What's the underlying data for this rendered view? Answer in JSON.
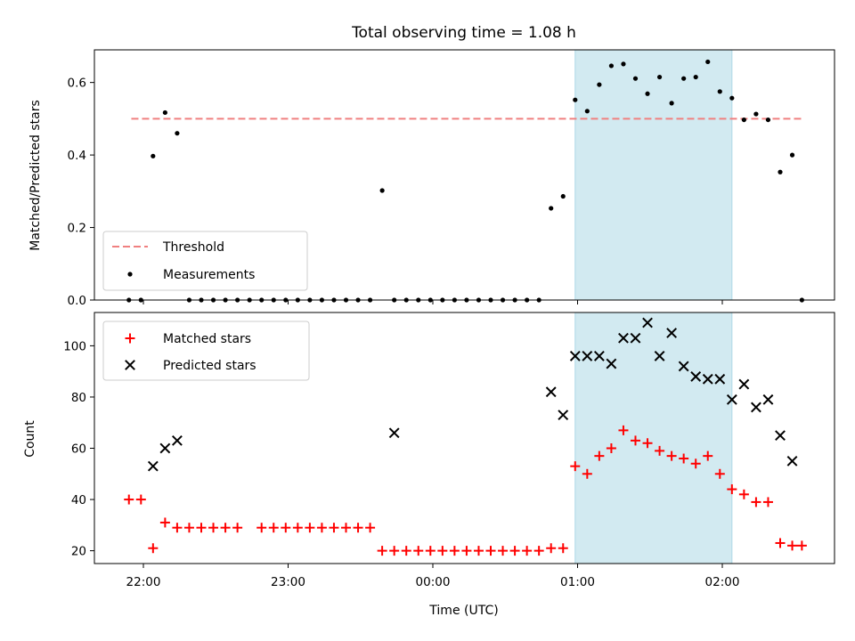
{
  "title": "Total observing time = 1.08 h",
  "xlabel": "Time (UTC)",
  "colors": {
    "threshold": "#f08080",
    "measurements": "#000000",
    "matched": "#ff0000",
    "predicted": "#000000",
    "highlight": "#add8e6"
  },
  "chart_data": [
    {
      "type": "scatter",
      "ylabel": "Matched/Predicted stars",
      "ylim": [
        0,
        0.69
      ],
      "yticks": [
        0.0,
        0.2,
        0.4,
        0.6
      ],
      "ytick_labels": [
        "0.0",
        "0.2",
        "0.4",
        "0.6"
      ],
      "xticks_shown": false,
      "highlight_span": {
        "start": "00:59",
        "end": "02:04"
      },
      "legend": {
        "position": "lower left",
        "entries": [
          "Threshold",
          "Measurements"
        ]
      },
      "threshold": {
        "name": "Threshold",
        "value": 0.5,
        "x_start": "21:55",
        "x_end": "02:33"
      },
      "series": [
        {
          "name": "Measurements",
          "x": [
            "21:54",
            "21:59",
            "22:04",
            "22:09",
            "22:14",
            "22:19",
            "22:24",
            "22:29",
            "22:34",
            "22:39",
            "22:44",
            "22:49",
            "22:54",
            "22:59",
            "23:04",
            "23:09",
            "23:14",
            "23:19",
            "23:24",
            "23:29",
            "23:34",
            "23:39",
            "23:44",
            "23:49",
            "23:54",
            "23:59",
            "00:04",
            "00:09",
            "00:14",
            "00:19",
            "00:24",
            "00:29",
            "00:34",
            "00:39",
            "00:44",
            "00:49",
            "00:54",
            "00:59",
            "01:04",
            "01:09",
            "01:14",
            "01:19",
            "01:24",
            "01:29",
            "01:34",
            "01:39",
            "01:44",
            "01:49",
            "01:54",
            "01:59",
            "02:04",
            "02:09",
            "02:14",
            "02:19",
            "02:24",
            "02:29",
            "02:33"
          ],
          "y": [
            0.0,
            0.0,
            0.397,
            0.517,
            0.46,
            0.0,
            0.0,
            0.0,
            0.0,
            0.0,
            0.0,
            0.0,
            0.0,
            0.0,
            0.0,
            0.0,
            0.0,
            0.0,
            0.0,
            0.0,
            0.0,
            0.302,
            0.0,
            0.0,
            0.0,
            0.0,
            0.0,
            0.0,
            0.0,
            0.0,
            0.0,
            0.0,
            0.0,
            0.0,
            0.0,
            0.253,
            0.286,
            0.552,
            0.521,
            0.594,
            0.646,
            0.651,
            0.611,
            0.569,
            0.615,
            0.543,
            0.611,
            0.615,
            0.657,
            0.575,
            0.557,
            0.497,
            0.513,
            0.497,
            0.353,
            0.4,
            0.0
          ]
        }
      ]
    },
    {
      "type": "scatter",
      "ylabel": "Count",
      "ylim": [
        15,
        113
      ],
      "yticks": [
        20,
        40,
        60,
        80,
        100
      ],
      "ytick_labels": [
        "20",
        "40",
        "60",
        "80",
        "100"
      ],
      "xticks": [
        "22:00",
        "23:00",
        "00:00",
        "01:00",
        "02:00"
      ],
      "highlight_span": {
        "start": "00:59",
        "end": "02:04"
      },
      "legend": {
        "position": "upper left",
        "entries": [
          "Matched stars",
          "Predicted stars"
        ]
      },
      "series": [
        {
          "name": "Matched stars",
          "marker": "+",
          "x": [
            "21:54",
            "21:59",
            "22:04",
            "22:09",
            "22:14",
            "22:19",
            "22:24",
            "22:29",
            "22:34",
            "22:39",
            "22:49",
            "22:54",
            "22:59",
            "23:04",
            "23:09",
            "23:14",
            "23:19",
            "23:24",
            "23:29",
            "23:34",
            "23:39",
            "23:44",
            "23:49",
            "23:54",
            "23:59",
            "00:04",
            "00:09",
            "00:14",
            "00:19",
            "00:24",
            "00:29",
            "00:34",
            "00:39",
            "00:44",
            "00:49",
            "00:54",
            "00:59",
            "01:04",
            "01:09",
            "01:14",
            "01:19",
            "01:24",
            "01:29",
            "01:34",
            "01:39",
            "01:44",
            "01:49",
            "01:54",
            "01:59",
            "02:04",
            "02:09",
            "02:14",
            "02:19",
            "02:24",
            "02:29",
            "02:33"
          ],
          "y": [
            40,
            40,
            21,
            31,
            29,
            29,
            29,
            29,
            29,
            29,
            29,
            29,
            29,
            29,
            29,
            29,
            29,
            29,
            29,
            29,
            20,
            20,
            20,
            20,
            20,
            20,
            20,
            20,
            20,
            20,
            20,
            20,
            20,
            20,
            21,
            21,
            53,
            50,
            57,
            60,
            67,
            63,
            62,
            59,
            57,
            56,
            54,
            57,
            50,
            44,
            42,
            39,
            39,
            23,
            22,
            22
          ]
        },
        {
          "name": "Predicted stars",
          "marker": "x",
          "x": [
            "22:04",
            "22:09",
            "22:14",
            "23:44",
            "00:49",
            "00:54",
            "00:59",
            "01:04",
            "01:09",
            "01:14",
            "01:19",
            "01:24",
            "01:29",
            "01:34",
            "01:39",
            "01:44",
            "01:49",
            "01:54",
            "01:59",
            "02:04",
            "02:09",
            "02:14",
            "02:19",
            "02:24",
            "02:29"
          ],
          "y": [
            53,
            60,
            63,
            66,
            82,
            73,
            96,
            96,
            96,
            93,
            103,
            103,
            109,
            96,
            105,
            92,
            88,
            87,
            87,
            79,
            85,
            76,
            79,
            65,
            55
          ]
        }
      ]
    }
  ]
}
